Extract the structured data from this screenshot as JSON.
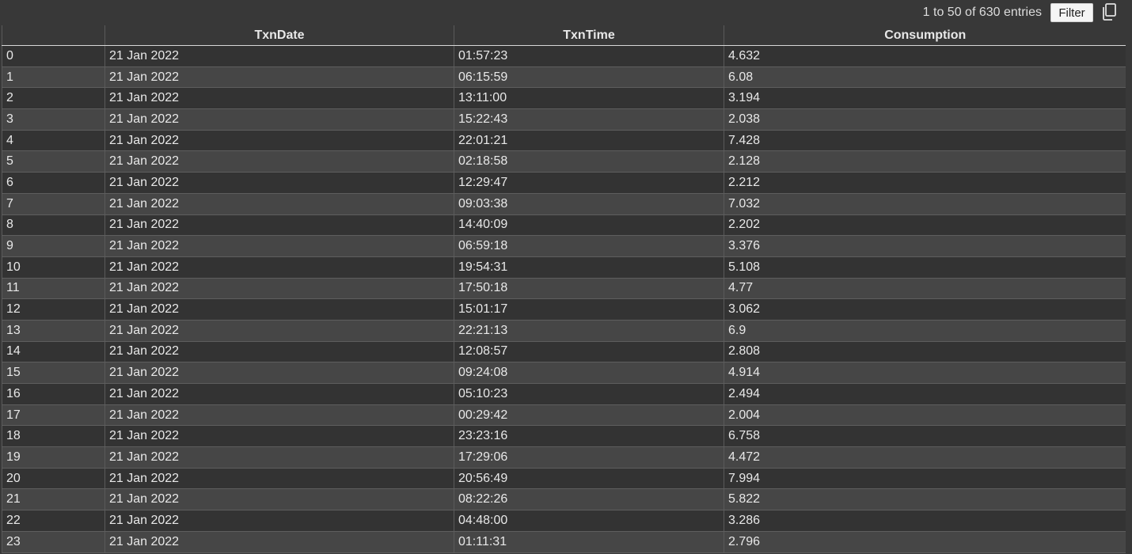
{
  "toolbar": {
    "entries_text": "1 to 50 of 630 entries",
    "filter_label": "Filter",
    "copy_icon": "copy-icon"
  },
  "table": {
    "columns": [
      "",
      "TxnDate",
      "TxnTime",
      "Consumption"
    ],
    "rows": [
      [
        "0",
        "21 Jan 2022",
        "01:57:23",
        "4.632"
      ],
      [
        "1",
        "21 Jan 2022",
        "06:15:59",
        "6.08"
      ],
      [
        "2",
        "21 Jan 2022",
        "13:11:00",
        "3.194"
      ],
      [
        "3",
        "21 Jan 2022",
        "15:22:43",
        "2.038"
      ],
      [
        "4",
        "21 Jan 2022",
        "22:01:21",
        "7.428"
      ],
      [
        "5",
        "21 Jan 2022",
        "02:18:58",
        "2.128"
      ],
      [
        "6",
        "21 Jan 2022",
        "12:29:47",
        "2.212"
      ],
      [
        "7",
        "21 Jan 2022",
        "09:03:38",
        "7.032"
      ],
      [
        "8",
        "21 Jan 2022",
        "14:40:09",
        "2.202"
      ],
      [
        "9",
        "21 Jan 2022",
        "06:59:18",
        "3.376"
      ],
      [
        "10",
        "21 Jan 2022",
        "19:54:31",
        "5.108"
      ],
      [
        "11",
        "21 Jan 2022",
        "17:50:18",
        "4.77"
      ],
      [
        "12",
        "21 Jan 2022",
        "15:01:17",
        "3.062"
      ],
      [
        "13",
        "21 Jan 2022",
        "22:21:13",
        "6.9"
      ],
      [
        "14",
        "21 Jan 2022",
        "12:08:57",
        "2.808"
      ],
      [
        "15",
        "21 Jan 2022",
        "09:24:08",
        "4.914"
      ],
      [
        "16",
        "21 Jan 2022",
        "05:10:23",
        "2.494"
      ],
      [
        "17",
        "21 Jan 2022",
        "00:29:42",
        "2.004"
      ],
      [
        "18",
        "21 Jan 2022",
        "23:23:16",
        "6.758"
      ],
      [
        "19",
        "21 Jan 2022",
        "17:29:06",
        "4.472"
      ],
      [
        "20",
        "21 Jan 2022",
        "20:56:49",
        "7.994"
      ],
      [
        "21",
        "21 Jan 2022",
        "08:22:26",
        "5.822"
      ],
      [
        "22",
        "21 Jan 2022",
        "04:48:00",
        "3.286"
      ],
      [
        "23",
        "21 Jan 2022",
        "01:11:31",
        "2.796"
      ]
    ]
  }
}
